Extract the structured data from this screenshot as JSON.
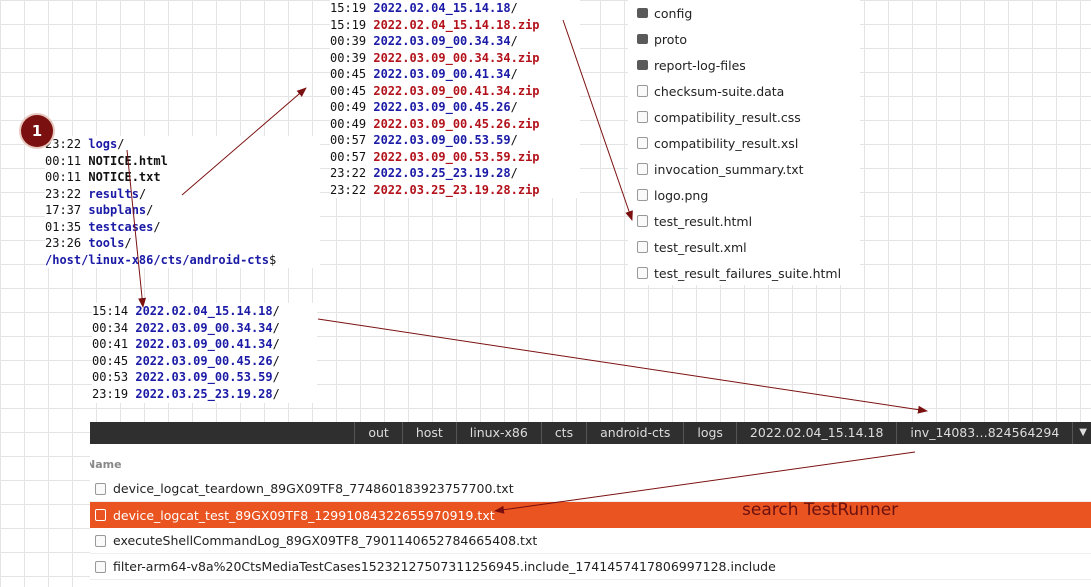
{
  "badge": "1",
  "terminal_top": {
    "lines": [
      {
        "time": "15:19",
        "name": "2022.02.04_15.14.18",
        "tail": "/"
      },
      {
        "time": "15:19",
        "name": "2022.02.04_15.14.18.zip"
      },
      {
        "time": "00:39",
        "name": "2022.03.09_00.34.34",
        "tail": "/"
      },
      {
        "time": "00:39",
        "name": "2022.03.09_00.34.34.zip"
      },
      {
        "time": "00:45",
        "name": "2022.03.09_00.41.34",
        "tail": "/"
      },
      {
        "time": "00:45",
        "name": "2022.03.09_00.41.34.zip"
      },
      {
        "time": "00:49",
        "name": "2022.03.09_00.45.26",
        "tail": "/"
      },
      {
        "time": "00:49",
        "name": "2022.03.09_00.45.26.zip"
      },
      {
        "time": "00:57",
        "name": "2022.03.09_00.53.59",
        "tail": "/"
      },
      {
        "time": "00:57",
        "name": "2022.03.09_00.53.59.zip"
      },
      {
        "time": "23:22",
        "name": "2022.03.25_23.19.28",
        "tail": "/"
      },
      {
        "time": "23:22",
        "name": "2022.03.25_23.19.28.zip"
      }
    ]
  },
  "terminal_left": {
    "lines": [
      {
        "time": "23:22",
        "name": "logs",
        "tail": "/"
      },
      {
        "time": "00:11",
        "name": "NOTICE.html"
      },
      {
        "time": "00:11",
        "name": "NOTICE.txt"
      },
      {
        "time": "23:22",
        "name": "results",
        "tail": "/"
      },
      {
        "time": "17:37",
        "name": "subplans",
        "tail": "/"
      },
      {
        "time": "01:35",
        "name": "testcases",
        "tail": "/"
      },
      {
        "time": "23:26",
        "name": "tools",
        "tail": "/"
      }
    ],
    "prompt": {
      "path": "/host/linux-x86/cts/android-cts",
      "tail": "$"
    }
  },
  "terminal_middle": {
    "lines": [
      {
        "time": "15:14",
        "name": "2022.02.04_15.14.18",
        "tail": "/"
      },
      {
        "time": "00:34",
        "name": "2022.03.09_00.34.34",
        "tail": "/"
      },
      {
        "time": "00:41",
        "name": "2022.03.09_00.41.34",
        "tail": "/"
      },
      {
        "time": "00:45",
        "name": "2022.03.09_00.45.26",
        "tail": "/"
      },
      {
        "time": "00:53",
        "name": "2022.03.09_00.53.59",
        "tail": "/"
      },
      {
        "time": "23:19",
        "name": "2022.03.25_23.19.28",
        "tail": "/"
      }
    ]
  },
  "results_panel": {
    "folders": [
      "config",
      "proto",
      "report-log-files"
    ],
    "files": [
      "checksum-suite.data",
      "compatibility_result.css",
      "compatibility_result.xsl",
      "invocation_summary.txt",
      "logo.png",
      "test_result.html",
      "test_result.xml",
      "test_result_failures_suite.html"
    ]
  },
  "breadcrumb": [
    "out",
    "host",
    "linux-x86",
    "cts",
    "android-cts",
    "logs",
    "2022.02.04_15.14.18",
    "inv_14083…824564294"
  ],
  "file_list": {
    "header": "Name",
    "rows": [
      "device_logcat_teardown_89GX09TF8_774860183923757700.txt",
      "device_logcat_test_89GX09TF8_12991084322655970919.txt",
      "executeShellCommandLog_89GX09TF8_7901140652784665408.txt",
      "filter-arm64-v8a%20CtsMediaTestCases15232127507311256945.include_1741457417806997128.include"
    ]
  },
  "annotation": "search TestRunner"
}
